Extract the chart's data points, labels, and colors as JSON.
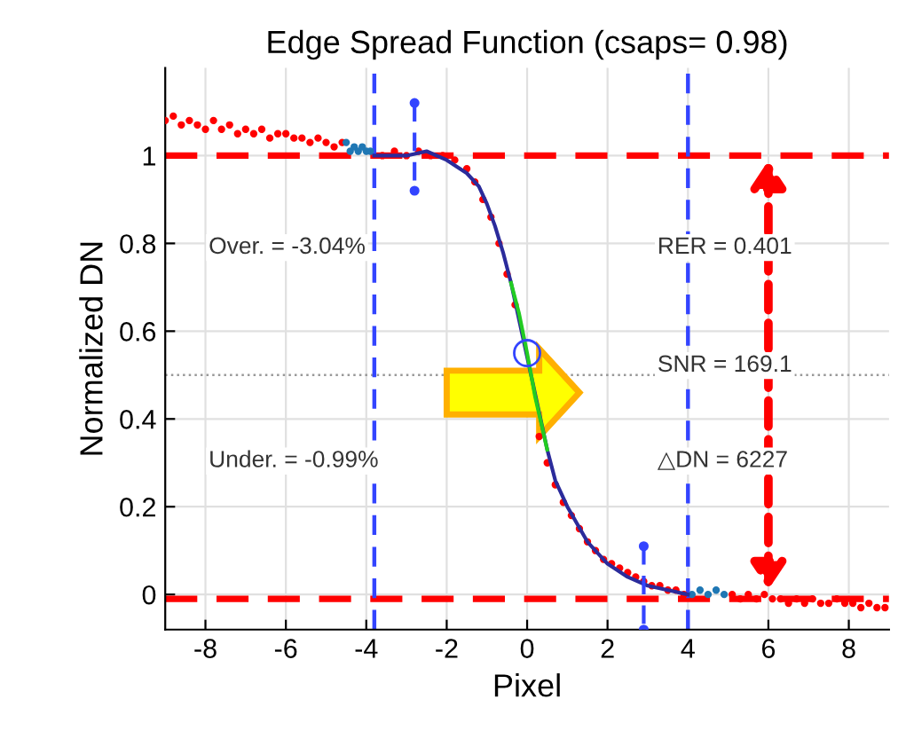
{
  "chart_data": {
    "type": "scatter",
    "title": "Edge Spread Function (csaps= 0.98)",
    "xlabel": "Pixel",
    "ylabel": "Normalized DN",
    "xlim": [
      -9,
      9
    ],
    "ylim": [
      -0.08,
      1.2
    ],
    "xticks": [
      -8,
      -6,
      -4,
      -2,
      0,
      2,
      4,
      6,
      8
    ],
    "yticks": [
      0,
      0.2,
      0.4,
      0.6,
      0.8,
      1
    ],
    "grid": true,
    "series": [
      {
        "type": "scatter",
        "marker": "circle",
        "color": "#ff0000",
        "x": [
          -9,
          -8.8,
          -8.6,
          -8.4,
          -8.2,
          -8,
          -7.8,
          -7.6,
          -7.4,
          -7.2,
          -7,
          -6.8,
          -6.6,
          -6.4,
          -6.2,
          -6,
          -5.8,
          -5.6,
          -5.4,
          -5.2,
          -5,
          -4.8,
          -4.6,
          -3.6,
          -3.3,
          -3,
          -2.7,
          -2.4,
          -2.1,
          -1.8,
          -1.5,
          -1.3,
          -1.1,
          -0.9,
          -0.7,
          -0.5,
          -0.3,
          0.3,
          0.5,
          0.7,
          0.9,
          1.1,
          1.3,
          1.5,
          1.7,
          1.9,
          2.1,
          2.3,
          2.5,
          2.7,
          2.9,
          3.1,
          3.3,
          3.5,
          3.7,
          3.9,
          5.1,
          5.3,
          5.5,
          5.7,
          5.9,
          6.1,
          6.3,
          6.5,
          6.7,
          6.9,
          7.1,
          7.3,
          7.5,
          7.7,
          7.9,
          8.1,
          8.3,
          8.5,
          8.7,
          8.9
        ],
        "values": [
          1.08,
          1.09,
          1.07,
          1.08,
          1.07,
          1.06,
          1.08,
          1.06,
          1.07,
          1.05,
          1.06,
          1.05,
          1.06,
          1.04,
          1.05,
          1.05,
          1.04,
          1.04,
          1.03,
          1.04,
          1.03,
          1.02,
          1.03,
          1.0,
          1.01,
          1.0,
          1.01,
          1.0,
          1.0,
          0.99,
          0.97,
          0.94,
          0.9,
          0.86,
          0.8,
          0.73,
          0.66,
          0.36,
          0.3,
          0.25,
          0.21,
          0.18,
          0.15,
          0.12,
          0.1,
          0.08,
          0.07,
          0.06,
          0.05,
          0.04,
          0.03,
          0.02,
          0.02,
          0.01,
          0.01,
          0.0,
          0.0,
          -0.01,
          0.0,
          -0.01,
          0.0,
          -0.01,
          -0.01,
          -0.02,
          -0.01,
          -0.02,
          -0.01,
          -0.02,
          -0.02,
          -0.01,
          -0.02,
          -0.02,
          -0.03,
          -0.02,
          -0.03,
          -0.03
        ]
      },
      {
        "type": "scatter",
        "marker": "circle",
        "color": "#1f77b4",
        "x": [
          -4.5,
          -4.4,
          -4.3,
          -4.2,
          -4.1,
          -4.0,
          -3.9,
          4.1,
          4.3,
          4.5,
          4.7,
          4.9
        ],
        "values": [
          1.03,
          1.01,
          1.02,
          1.01,
          1.02,
          1.01,
          1.01,
          0.0,
          0.01,
          0.0,
          0.01,
          0.0
        ]
      },
      {
        "type": "line",
        "marker": "none",
        "line_style": "solid",
        "color": "#2b2b9b",
        "x": [
          -3.8,
          -3,
          -2.5,
          -2,
          -1.5,
          -1.2,
          -1,
          -0.8,
          -0.6,
          -0.4,
          0.5,
          0.7,
          1,
          1.5,
          2,
          2.5,
          3,
          3.5,
          4
        ],
        "values": [
          1.0,
          1.0,
          1.01,
          0.99,
          0.96,
          0.93,
          0.89,
          0.84,
          0.78,
          0.71,
          0.33,
          0.26,
          0.2,
          0.12,
          0.07,
          0.04,
          0.02,
          0.01,
          0.0
        ]
      },
      {
        "type": "line",
        "marker": "none",
        "line_style": "solid",
        "color": "#22cc22",
        "x": [
          -0.4,
          -0.2,
          0,
          0.2,
          0.4,
          0.5
        ],
        "values": [
          0.71,
          0.64,
          0.55,
          0.45,
          0.37,
          0.33
        ]
      },
      {
        "type": "scatter",
        "marker": "circle",
        "color": "#3344ff",
        "x": [
          0
        ],
        "values": [
          0.55
        ]
      },
      {
        "type": "line",
        "marker": "circle",
        "line_style": "dashed",
        "color": "#3344ff",
        "x": [
          -2.8,
          -2.8
        ],
        "values": [
          1.12,
          0.92
        ]
      },
      {
        "type": "line",
        "marker": "circle",
        "line_style": "dashed",
        "color": "#3344ff",
        "x": [
          2.9,
          2.9
        ],
        "values": [
          0.11,
          -0.08
        ]
      }
    ],
    "ref_lines": [
      {
        "axis": "y",
        "value": 1,
        "color": "#ff0000",
        "line_style": "dashed"
      },
      {
        "axis": "y",
        "value": -0.01,
        "color": "#ff0000",
        "line_style": "dashed"
      },
      {
        "axis": "y",
        "value": 0.5,
        "color": "#999999",
        "line_style": "dotted"
      },
      {
        "axis": "x",
        "value": -3.8,
        "color": "#3344ff",
        "line_style": "dashed"
      },
      {
        "axis": "x",
        "value": 4,
        "color": "#3344ff",
        "line_style": "dashed"
      }
    ],
    "annotations": [
      "Over. = -3.04%",
      "Under. = -0.99%",
      "RER = 0.401",
      "SNR = 169.1",
      "△DN = 6227"
    ]
  }
}
